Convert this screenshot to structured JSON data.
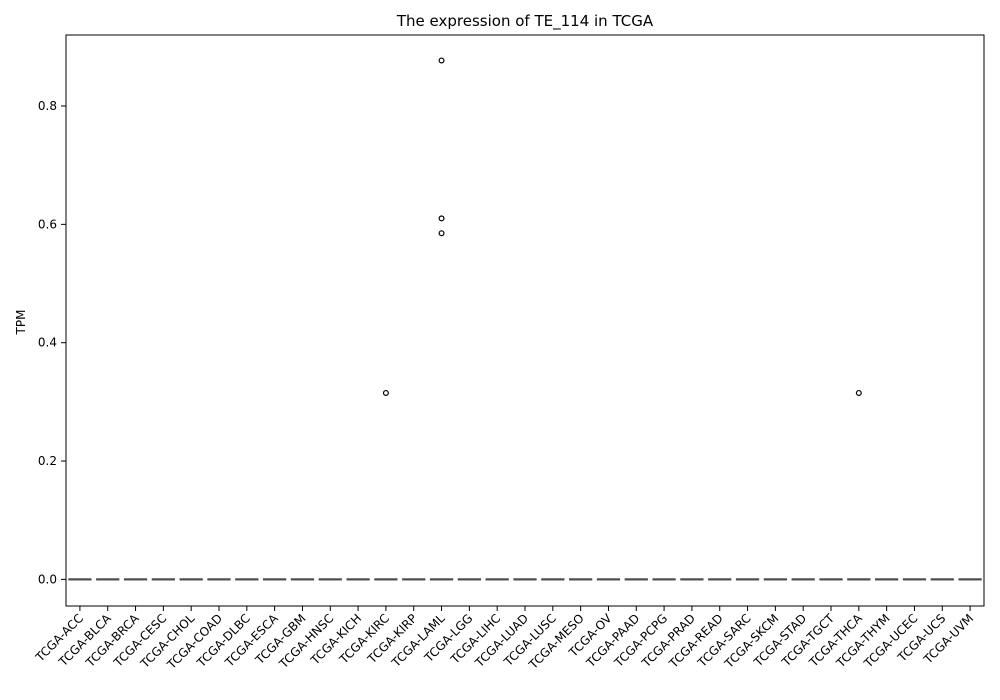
{
  "chart_data": {
    "type": "box",
    "title": "The expression of TE_114 in TCGA",
    "xlabel": "",
    "ylabel": "TPM",
    "ylim": [
      -0.045,
      0.92
    ],
    "yticks": [
      0.0,
      0.2,
      0.4,
      0.6,
      0.8
    ],
    "ytick_labels": [
      "0.0",
      "0.2",
      "0.4",
      "0.6",
      "0.8"
    ],
    "grid": false,
    "categories": [
      "TCGA-ACC",
      "TCGA-BLCA",
      "TCGA-BRCA",
      "TCGA-CESC",
      "TCGA-CHOL",
      "TCGA-COAD",
      "TCGA-DLBC",
      "TCGA-ESCA",
      "TCGA-GBM",
      "TCGA-HNSC",
      "TCGA-KICH",
      "TCGA-KIRC",
      "TCGA-KIRP",
      "TCGA-LAML",
      "TCGA-LGG",
      "TCGA-LIHC",
      "TCGA-LUAD",
      "TCGA-LUSC",
      "TCGA-MESO",
      "TCGA-OV",
      "TCGA-PAAD",
      "TCGA-PCPG",
      "TCGA-PRAD",
      "TCGA-READ",
      "TCGA-SARC",
      "TCGA-SKCM",
      "TCGA-STAD",
      "TCGA-TGCT",
      "TCGA-THCA",
      "TCGA-THYM",
      "TCGA-UCEC",
      "TCGA-UCS",
      "TCGA-UVM"
    ],
    "boxes": [
      {
        "category": "TCGA-ACC",
        "q1": 0,
        "median": 0,
        "q3": 0,
        "whislo": 0,
        "whishi": 0,
        "outliers": []
      },
      {
        "category": "TCGA-BLCA",
        "q1": 0,
        "median": 0,
        "q3": 0,
        "whislo": 0,
        "whishi": 0,
        "outliers": []
      },
      {
        "category": "TCGA-BRCA",
        "q1": 0,
        "median": 0,
        "q3": 0,
        "whislo": 0,
        "whishi": 0,
        "outliers": []
      },
      {
        "category": "TCGA-CESC",
        "q1": 0,
        "median": 0,
        "q3": 0,
        "whislo": 0,
        "whishi": 0,
        "outliers": []
      },
      {
        "category": "TCGA-CHOL",
        "q1": 0,
        "median": 0,
        "q3": 0,
        "whislo": 0,
        "whishi": 0,
        "outliers": []
      },
      {
        "category": "TCGA-COAD",
        "q1": 0,
        "median": 0,
        "q3": 0,
        "whislo": 0,
        "whishi": 0,
        "outliers": []
      },
      {
        "category": "TCGA-DLBC",
        "q1": 0,
        "median": 0,
        "q3": 0,
        "whislo": 0,
        "whishi": 0,
        "outliers": []
      },
      {
        "category": "TCGA-ESCA",
        "q1": 0,
        "median": 0,
        "q3": 0,
        "whislo": 0,
        "whishi": 0,
        "outliers": []
      },
      {
        "category": "TCGA-GBM",
        "q1": 0,
        "median": 0,
        "q3": 0,
        "whislo": 0,
        "whishi": 0,
        "outliers": []
      },
      {
        "category": "TCGA-HNSC",
        "q1": 0,
        "median": 0,
        "q3": 0,
        "whislo": 0,
        "whishi": 0,
        "outliers": []
      },
      {
        "category": "TCGA-KICH",
        "q1": 0,
        "median": 0,
        "q3": 0,
        "whislo": 0,
        "whishi": 0,
        "outliers": []
      },
      {
        "category": "TCGA-KIRC",
        "q1": 0,
        "median": 0,
        "q3": 0,
        "whislo": 0,
        "whishi": 0,
        "outliers": [
          0.315
        ]
      },
      {
        "category": "TCGA-KIRP",
        "q1": 0,
        "median": 0,
        "q3": 0,
        "whislo": 0,
        "whishi": 0,
        "outliers": []
      },
      {
        "category": "TCGA-LAML",
        "q1": 0,
        "median": 0,
        "q3": 0,
        "whislo": 0,
        "whishi": 0,
        "outliers": [
          0.877,
          0.61,
          0.585
        ]
      },
      {
        "category": "TCGA-LGG",
        "q1": 0,
        "median": 0,
        "q3": 0,
        "whislo": 0,
        "whishi": 0,
        "outliers": []
      },
      {
        "category": "TCGA-LIHC",
        "q1": 0,
        "median": 0,
        "q3": 0,
        "whislo": 0,
        "whishi": 0,
        "outliers": []
      },
      {
        "category": "TCGA-LUAD",
        "q1": 0,
        "median": 0,
        "q3": 0,
        "whislo": 0,
        "whishi": 0,
        "outliers": []
      },
      {
        "category": "TCGA-LUSC",
        "q1": 0,
        "median": 0,
        "q3": 0,
        "whislo": 0,
        "whishi": 0,
        "outliers": []
      },
      {
        "category": "TCGA-MESO",
        "q1": 0,
        "median": 0,
        "q3": 0,
        "whislo": 0,
        "whishi": 0,
        "outliers": []
      },
      {
        "category": "TCGA-OV",
        "q1": 0,
        "median": 0,
        "q3": 0,
        "whislo": 0,
        "whishi": 0,
        "outliers": []
      },
      {
        "category": "TCGA-PAAD",
        "q1": 0,
        "median": 0,
        "q3": 0,
        "whislo": 0,
        "whishi": 0,
        "outliers": []
      },
      {
        "category": "TCGA-PCPG",
        "q1": 0,
        "median": 0,
        "q3": 0,
        "whislo": 0,
        "whishi": 0,
        "outliers": []
      },
      {
        "category": "TCGA-PRAD",
        "q1": 0,
        "median": 0,
        "q3": 0,
        "whislo": 0,
        "whishi": 0,
        "outliers": []
      },
      {
        "category": "TCGA-READ",
        "q1": 0,
        "median": 0,
        "q3": 0,
        "whislo": 0,
        "whishi": 0,
        "outliers": []
      },
      {
        "category": "TCGA-SARC",
        "q1": 0,
        "median": 0,
        "q3": 0,
        "whislo": 0,
        "whishi": 0,
        "outliers": []
      },
      {
        "category": "TCGA-SKCM",
        "q1": 0,
        "median": 0,
        "q3": 0,
        "whislo": 0,
        "whishi": 0,
        "outliers": []
      },
      {
        "category": "TCGA-STAD",
        "q1": 0,
        "median": 0,
        "q3": 0,
        "whislo": 0,
        "whishi": 0,
        "outliers": []
      },
      {
        "category": "TCGA-TGCT",
        "q1": 0,
        "median": 0,
        "q3": 0,
        "whislo": 0,
        "whishi": 0,
        "outliers": []
      },
      {
        "category": "TCGA-THCA",
        "q1": 0,
        "median": 0,
        "q3": 0,
        "whislo": 0,
        "whishi": 0,
        "outliers": [
          0.315
        ]
      },
      {
        "category": "TCGA-THYM",
        "q1": 0,
        "median": 0,
        "q3": 0,
        "whislo": 0,
        "whishi": 0,
        "outliers": []
      },
      {
        "category": "TCGA-UCEC",
        "q1": 0,
        "median": 0,
        "q3": 0,
        "whislo": 0,
        "whishi": 0,
        "outliers": []
      },
      {
        "category": "TCGA-UCS",
        "q1": 0,
        "median": 0,
        "q3": 0,
        "whislo": 0,
        "whishi": 0,
        "outliers": []
      },
      {
        "category": "TCGA-UVM",
        "q1": 0,
        "median": 0,
        "q3": 0,
        "whislo": 0,
        "whishi": 0,
        "outliers": []
      }
    ],
    "colors": {
      "box": "#4d4d4d",
      "outlier": "#000000",
      "axis": "#000000"
    }
  }
}
